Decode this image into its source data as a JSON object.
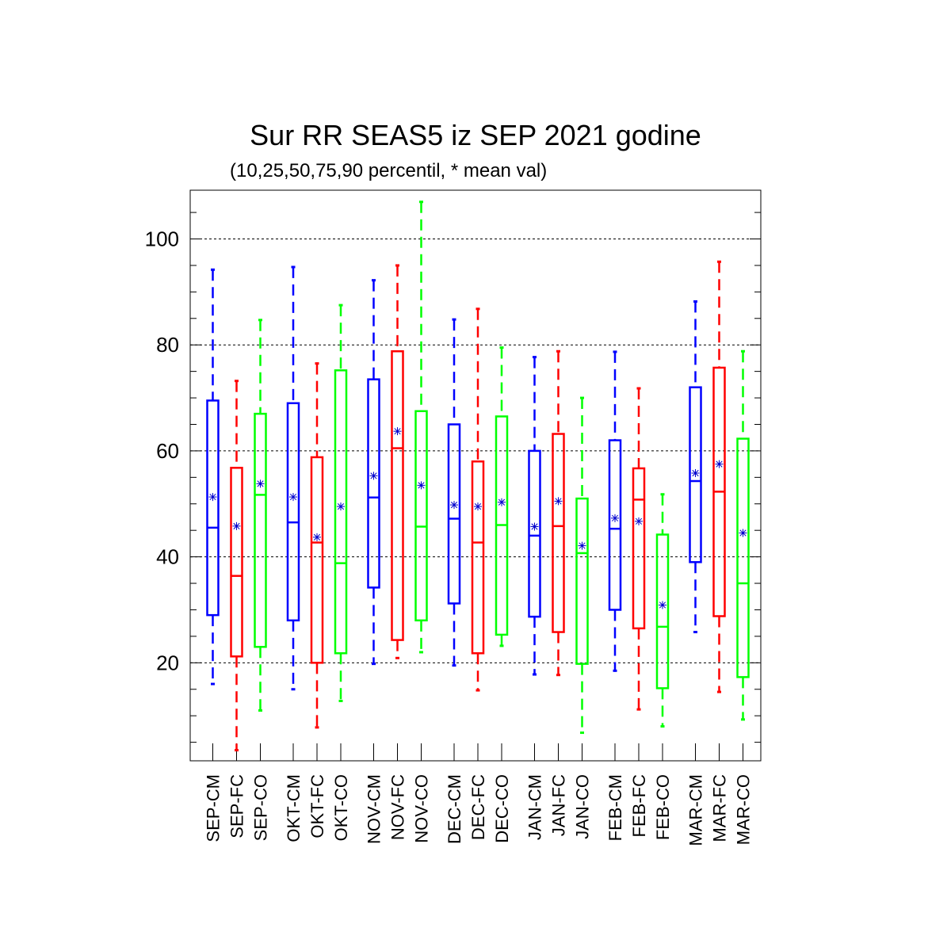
{
  "chart_data": {
    "type": "box",
    "title": "Sur RR SEAS5 iz SEP 2021 godine",
    "subtitle": "(10,25,50,75,90 percentil, * mean val)",
    "xlabel": "",
    "ylabel": "",
    "ylim": [
      1.5,
      109.2
    ],
    "yticks": [
      20,
      40,
      60,
      80,
      100
    ],
    "grid": "horizontal dashed at major ticks",
    "legend": "none",
    "colors": {
      "CM": "#0000ff",
      "FC": "#ff0000",
      "CO": "#00ff00",
      "mean_marker": "#0000cc"
    },
    "categories": [
      "SEP-CM",
      "SEP-FC",
      "SEP-CO",
      "OKT-CM",
      "OKT-FC",
      "OKT-CO",
      "NOV-CM",
      "NOV-FC",
      "NOV-CO",
      "DEC-CM",
      "DEC-FC",
      "DEC-CO",
      "JAN-CM",
      "JAN-FC",
      "JAN-CO",
      "FEB-CM",
      "FEB-FC",
      "FEB-CO",
      "MAR-CM",
      "MAR-FC",
      "MAR-CO"
    ],
    "boxes": [
      {
        "p10": 16.0,
        "p25": 29.0,
        "p50": 45.5,
        "p75": 69.5,
        "p90": 94.2,
        "mean": 51.3
      },
      {
        "p10": 3.5,
        "p25": 21.2,
        "p50": 36.4,
        "p75": 56.8,
        "p90": 73.2,
        "mean": 45.8
      },
      {
        "p10": 11.0,
        "p25": 23.0,
        "p50": 51.7,
        "p75": 67.0,
        "p90": 84.7,
        "mean": 53.8
      },
      {
        "p10": 15.0,
        "p25": 28.0,
        "p50": 46.5,
        "p75": 69.0,
        "p90": 94.7,
        "mean": 51.3
      },
      {
        "p10": 7.8,
        "p25": 20.0,
        "p50": 42.7,
        "p75": 58.8,
        "p90": 76.5,
        "mean": 43.7
      },
      {
        "p10": 12.8,
        "p25": 21.8,
        "p50": 38.8,
        "p75": 75.2,
        "p90": 87.5,
        "mean": 49.5
      },
      {
        "p10": 19.8,
        "p25": 34.2,
        "p50": 51.2,
        "p75": 73.5,
        "p90": 92.2,
        "mean": 55.3
      },
      {
        "p10": 20.9,
        "p25": 24.3,
        "p50": 60.5,
        "p75": 78.8,
        "p90": 95.0,
        "mean": 63.7
      },
      {
        "p10": 22.0,
        "p25": 28.0,
        "p50": 45.7,
        "p75": 67.5,
        "p90": 107.0,
        "mean": 53.5
      },
      {
        "p10": 19.5,
        "p25": 31.2,
        "p50": 47.2,
        "p75": 65.0,
        "p90": 84.8,
        "mean": 49.8
      },
      {
        "p10": 14.8,
        "p25": 21.8,
        "p50": 42.7,
        "p75": 58.0,
        "p90": 86.8,
        "mean": 49.5
      },
      {
        "p10": 23.2,
        "p25": 25.3,
        "p50": 46.0,
        "p75": 66.5,
        "p90": 79.5,
        "mean": 50.3
      },
      {
        "p10": 17.8,
        "p25": 28.7,
        "p50": 44.0,
        "p75": 60.0,
        "p90": 77.7,
        "mean": 45.7
      },
      {
        "p10": 17.7,
        "p25": 25.8,
        "p50": 45.8,
        "p75": 63.2,
        "p90": 78.8,
        "mean": 50.5
      },
      {
        "p10": 6.8,
        "p25": 19.8,
        "p50": 40.7,
        "p75": 51.0,
        "p90": 70.0,
        "mean": 42.1
      },
      {
        "p10": 18.5,
        "p25": 30.0,
        "p50": 45.3,
        "p75": 62.0,
        "p90": 78.7,
        "mean": 47.3
      },
      {
        "p10": 11.2,
        "p25": 26.5,
        "p50": 50.8,
        "p75": 56.7,
        "p90": 71.8,
        "mean": 46.7
      },
      {
        "p10": 8.0,
        "p25": 15.2,
        "p50": 26.8,
        "p75": 44.2,
        "p90": 51.8,
        "mean": 30.9
      },
      {
        "p10": 25.8,
        "p25": 39.0,
        "p50": 54.3,
        "p75": 72.0,
        "p90": 88.2,
        "mean": 55.8
      },
      {
        "p10": 14.5,
        "p25": 28.8,
        "p50": 52.3,
        "p75": 75.7,
        "p90": 95.7,
        "mean": 57.5
      },
      {
        "p10": 9.3,
        "p25": 17.3,
        "p50": 35.0,
        "p75": 62.3,
        "p90": 78.8,
        "mean": 44.5
      }
    ]
  }
}
